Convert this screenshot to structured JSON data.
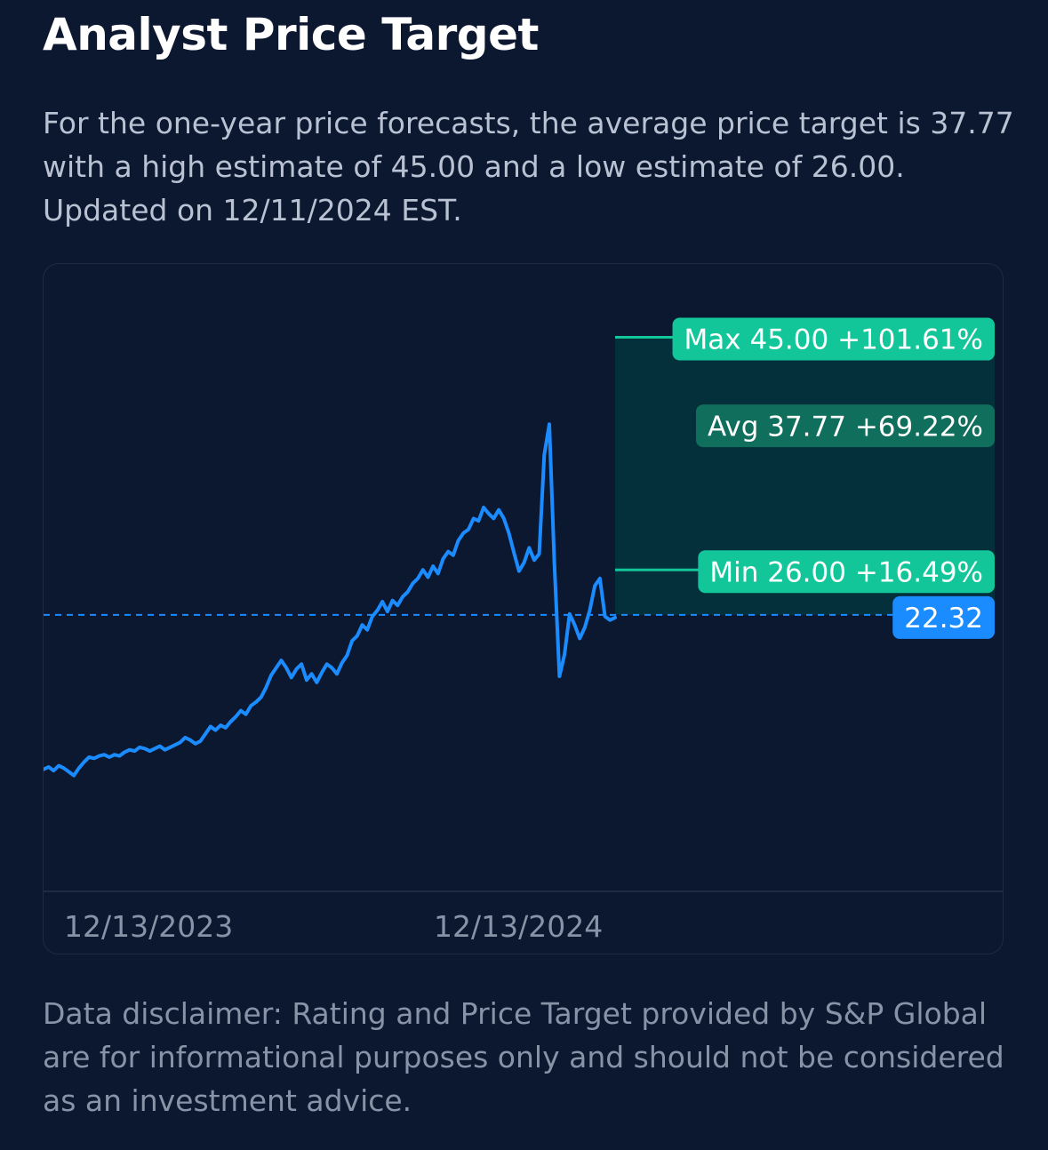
{
  "header": {
    "title": "Analyst Price Target"
  },
  "summary": {
    "text": "For the one-year price forecasts, the average price target is 37.77 with a high estimate of 45.00 and a low estimate of 26.00. Updated on 12/11/2024 EST."
  },
  "colors": {
    "background": "#0c1730",
    "price_line": "#1b8cff",
    "current_badge": "#1b8cff",
    "max_badge": "#13c69a",
    "min_badge": "#13c69a",
    "avg_badge": "#0f6e5c",
    "target_band": "#03303b"
  },
  "chart_data": {
    "type": "line",
    "x_labels": [
      "12/13/2023",
      "12/13/2024"
    ],
    "ylim": [
      3,
      47
    ],
    "current_price": 22.32,
    "current_label": "22.32",
    "series": [
      {
        "values": [
          9.7,
          9.9,
          9.6,
          10.0,
          9.8,
          9.5,
          9.2,
          9.8,
          10.3,
          10.7,
          10.6,
          10.8,
          10.9,
          10.7,
          10.9,
          10.8,
          11.1,
          11.3,
          11.2,
          11.5,
          11.4,
          11.2,
          11.4,
          11.6,
          11.3,
          11.5,
          11.7,
          11.9,
          12.3,
          12.1,
          11.8,
          12.0,
          12.6,
          13.2,
          12.9,
          13.3,
          13.1,
          13.6,
          14.0,
          14.5,
          14.2,
          14.9,
          15.2,
          15.6,
          16.4,
          17.4,
          18.0,
          18.6,
          18.0,
          17.2,
          17.9,
          18.3,
          17.0,
          17.5,
          16.8,
          17.6,
          18.3,
          18.0,
          17.5,
          18.4,
          19.0,
          20.2,
          20.6,
          21.5,
          21.1,
          22.2,
          22.7,
          23.4,
          22.6,
          23.5,
          23.1,
          23.8,
          24.2,
          24.9,
          25.3,
          26.0,
          25.4,
          26.3,
          25.7,
          26.9,
          27.5,
          27.2,
          28.4,
          29.0,
          29.3,
          30.2,
          30.0,
          31.1,
          30.6,
          30.2,
          30.9,
          30.2,
          29.0,
          27.4,
          25.9,
          26.6,
          27.8,
          26.8,
          27.3,
          35.4,
          37.9,
          26.5,
          17.3,
          19.1,
          22.4,
          21.5,
          20.4,
          21.3,
          22.7,
          24.7,
          25.3,
          22.2,
          21.9,
          22.1
        ],
        "range_x": [
          0,
          113
        ]
      }
    ],
    "targets": {
      "max": {
        "label": "Max 45.00  +101.61%",
        "value": 45.0
      },
      "avg": {
        "label": "Avg 37.77  +69.22%",
        "value": 37.77
      },
      "min": {
        "label": "Min 26.00  +16.49%",
        "value": 26.0
      }
    }
  },
  "disclaimer": {
    "text": "Data disclaimer: Rating and Price Target provided by S&P Global are for informational purposes only and should not be considered as an investment advice."
  }
}
